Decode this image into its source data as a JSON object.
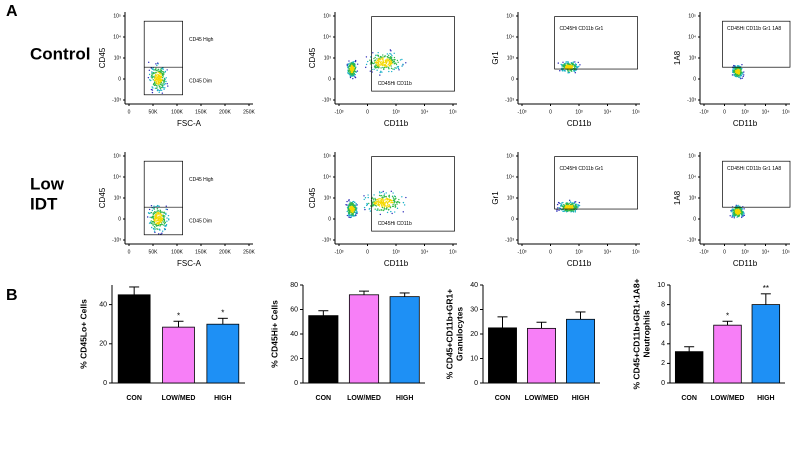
{
  "panel_labels": [
    "A",
    "B"
  ],
  "flow": {
    "rows": [
      [
        "Control"
      ],
      [
        "Low",
        "IDT"
      ]
    ],
    "columns": [
      {
        "x_label": "FSC-A",
        "y_label": "CD45",
        "x_ticks": [
          "0",
          "50K",
          "100K",
          "150K",
          "200K",
          "250K"
        ],
        "y_ticks": [
          "10⁵",
          "10⁴",
          "10³",
          "0",
          "-10³"
        ],
        "gates": [
          "CD45 High",
          "CD45 Dim"
        ]
      },
      {
        "x_label": "CD11b",
        "y_label": "CD45",
        "x_ticks": [
          "-10³",
          "0",
          "10³",
          "10⁴",
          "10⁵"
        ],
        "y_ticks": [
          "10⁵",
          "10⁴",
          "10³",
          "0",
          "-10³"
        ],
        "gates": [
          "CD45Hi CD11b"
        ]
      },
      {
        "x_label": "CD11b",
        "y_label": "Gr1",
        "x_ticks": [
          "-10³",
          "0",
          "10³",
          "10⁴",
          "10⁵"
        ],
        "y_ticks": [
          "10⁵",
          "10⁴",
          "10³",
          "0",
          "-10³"
        ],
        "gates": [
          "CD45Hi CD11b Gr1"
        ]
      },
      {
        "x_label": "CD11b",
        "y_label": "1A8",
        "x_ticks": [
          "-10³",
          "0",
          "10³",
          "10⁴",
          "10⁵"
        ],
        "y_ticks": [
          "10⁵",
          "10⁴",
          "10³",
          "0",
          "-10³"
        ],
        "gates": [
          "CD45Hi CD11b Gr1 1A8"
        ]
      }
    ]
  },
  "chart_data": [
    {
      "type": "bar",
      "y_label": [
        "% CD45Lo+ Cells"
      ],
      "categories": [
        "CON",
        "LOW/MED",
        "HIGH"
      ],
      "values": [
        45,
        28.5,
        30
      ],
      "errors": [
        4,
        3,
        3
      ],
      "colors": [
        "#000000",
        "#f77ff7",
        "#1e90f5"
      ],
      "annotations": [
        null,
        "*",
        "*"
      ],
      "ylim": [
        0,
        50
      ],
      "yticks": [
        0,
        20,
        40
      ]
    },
    {
      "type": "bar",
      "y_label": [
        "% CD45Hi+ Cells"
      ],
      "categories": [
        "CON",
        "LOW/MED",
        "HIGH"
      ],
      "values": [
        55,
        72,
        70.5
      ],
      "errors": [
        4,
        3,
        3
      ],
      "colors": [
        "#000000",
        "#f77ff7",
        "#1e90f5"
      ],
      "annotations": [
        null,
        null,
        null
      ],
      "ylim": [
        0,
        80
      ],
      "yticks": [
        0,
        20,
        40,
        60,
        80
      ]
    },
    {
      "type": "bar",
      "y_label": [
        "% CD45+CD11b+GR1+",
        "Granulocytes"
      ],
      "categories": [
        "CON",
        "LOW/MED",
        "HIGH"
      ],
      "values": [
        22.5,
        22.3,
        26
      ],
      "errors": [
        4.5,
        2.5,
        3
      ],
      "colors": [
        "#000000",
        "#f77ff7",
        "#1e90f5"
      ],
      "annotations": [
        null,
        null,
        null
      ],
      "ylim": [
        0,
        40
      ],
      "yticks": [
        0,
        10,
        20,
        30,
        40
      ]
    },
    {
      "type": "bar",
      "y_label": [
        "% CD45+CD11b+GR1+1A8+",
        "Neutrophils"
      ],
      "categories": [
        "CON",
        "LOW/MED",
        "HIGH"
      ],
      "values": [
        3.2,
        5.9,
        8
      ],
      "errors": [
        0.5,
        0.4,
        1.1
      ],
      "colors": [
        "#000000",
        "#f77ff7",
        "#1e90f5"
      ],
      "annotations": [
        null,
        "*",
        "**"
      ],
      "ylim": [
        0,
        10
      ],
      "yticks": [
        0,
        2,
        4,
        6,
        8,
        10
      ]
    }
  ]
}
